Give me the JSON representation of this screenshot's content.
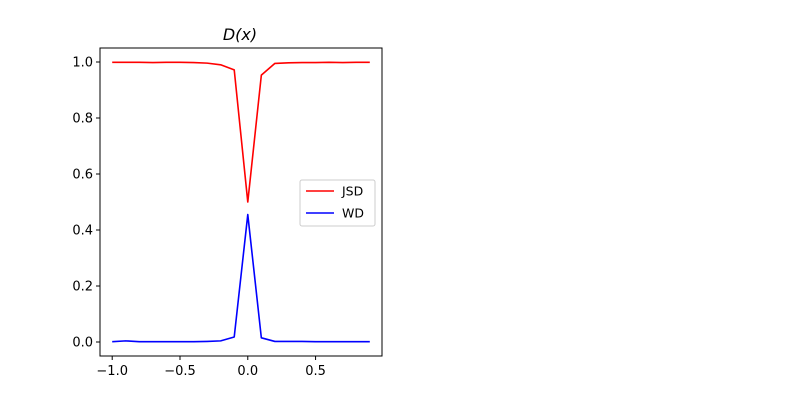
{
  "chart_data": {
    "type": "line",
    "title": "D(x)",
    "xlabel": "",
    "ylabel": "",
    "xlim": [
      -1.09,
      0.99
    ],
    "ylim": [
      -0.05,
      1.05
    ],
    "xticks": [
      -1.0,
      -0.5,
      0.0,
      0.5
    ],
    "xtick_labels": [
      "−1.0",
      "−0.5",
      "0.0",
      "0.5"
    ],
    "yticks": [
      0.0,
      0.2,
      0.4,
      0.6,
      0.8,
      1.0
    ],
    "ytick_labels": [
      "0.0",
      "0.2",
      "0.4",
      "0.6",
      "0.8",
      "1.0"
    ],
    "grid": false,
    "legend_position": "center-right",
    "x": [
      -1.0,
      -0.9,
      -0.8,
      -0.7,
      -0.6,
      -0.5,
      -0.4,
      -0.3,
      -0.2,
      -0.1,
      0.0,
      0.1,
      0.2,
      0.3,
      0.4,
      0.5,
      0.6,
      0.7,
      0.8,
      0.9
    ],
    "series": [
      {
        "name": "JSD",
        "color": "#ff0000",
        "values": [
          0.999,
          0.999,
          0.999,
          0.998,
          0.999,
          0.999,
          0.998,
          0.996,
          0.99,
          0.972,
          0.5,
          0.953,
          0.995,
          0.997,
          0.998,
          0.998,
          0.999,
          0.998,
          0.999,
          0.999
        ]
      },
      {
        "name": "WD",
        "color": "#0000ff",
        "values": [
          0.001,
          0.004,
          0.001,
          0.001,
          0.001,
          0.001,
          0.001,
          0.002,
          0.004,
          0.018,
          0.455,
          0.015,
          0.002,
          0.002,
          0.002,
          0.001,
          0.001,
          0.001,
          0.001,
          0.001
        ]
      }
    ]
  }
}
